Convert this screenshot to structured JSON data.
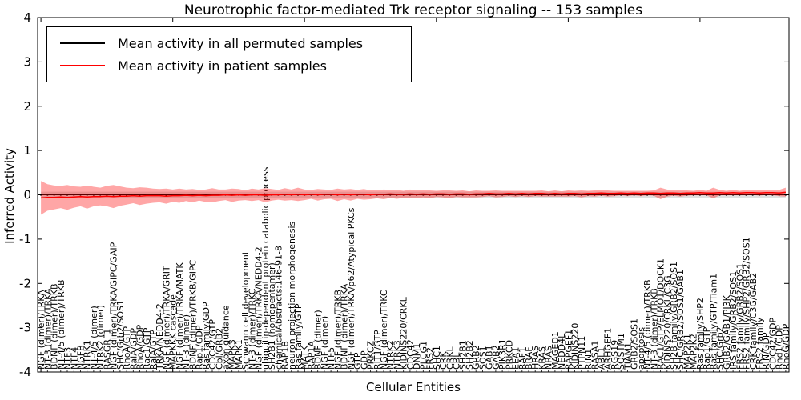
{
  "figure": {
    "title": "Neurotrophic factor-mediated Trk receptor signaling -- 153 samples",
    "xlabel": "Cellular Entities",
    "ylabel": "Inferred Activity"
  },
  "legend": {
    "items": [
      {
        "label": "Mean activity in all permuted samples",
        "color": "#000000"
      },
      {
        "label": "Mean activity in patient samples",
        "color": "#ff0000"
      }
    ]
  },
  "chart_data": {
    "type": "line",
    "title": "Neurotrophic factor-mediated Trk receptor signaling -- 153 samples",
    "xlabel": "Cellular Entities",
    "ylabel": "Inferred Activity",
    "ylim": [
      -4,
      4
    ],
    "yticks": [
      "-4",
      "-3",
      "-2",
      "-1",
      "0",
      "1",
      "2",
      "3",
      "4"
    ],
    "n_samples": 153,
    "grid": false,
    "legend_position": "upper left",
    "categories": [
      "NGF (dimer)/TRKA",
      "NT-3 (dimer)/TRKA",
      "BDNF (dimer)/TRKB",
      "NT-4/5 (dimer)/TRKB",
      "NTF3",
      "NTF4",
      "NGFB",
      "NTRK1",
      "NT-4/5 (dimer)",
      "NTRK2 (dimer)",
      "RASGRF1",
      "NGF (dimer)/TRKA/GIPC/GAIP",
      "SHC/Grb2/SOS1",
      "RhoA/GTP",
      "RalA/GDP",
      "RhoA/GDP",
      "Rac1/GTP",
      "RalA/GTP",
      "TRKA/NEDD4-2",
      "NGF (dimer)/TRKA/GRIT",
      "MAPKKK cascade",
      "NGF (dimer)/TRKA/MATK",
      "NT-3 (dimer)",
      "BDNF (dimer)/TRKB/GIPC",
      "Rap1/GDP",
      "Ras family/GDP",
      "CDC42/GTP",
      "Cbl/GRB2",
      "axon guidance",
      "MAPK3",
      "MAPK1",
      "Schwann cell development",
      "NT-3 (dimer)/TRKC",
      "NGF (dimer)/TRKA/NEDD4-2",
      "ubiquitin-dependent protein catabolic process",
      "SH2B1 (homopentamer)",
      "chemicalAbstracts:146-91-8",
      "RAP1B",
      "neuron projection morphogenesis",
      "Ras family/GTP",
      "MATK",
      "RAP1A",
      "BDNF (dimer)",
      "NGF (dimer)",
      "NTF5",
      "NGF (dimer)/TRKB",
      "BDNF (dimer)/TRKA",
      "NGF (dimer)/TRKA/p62/Atypical PKCs",
      "GTP",
      "GDP",
      "PRKCZ",
      "RIT1/GTP",
      "NGF (dimer)/TRKC",
      "NTRK2",
      "NTRK3",
      "KIDINS220/CRKL",
      "CDC42",
      "DNM1",
      "PLCG1",
      "FRS2",
      "SHC1",
      "CRK",
      "CRKL",
      "CBL",
      "SH2B1",
      "SH2B2",
      "GRB2",
      "SOS1",
      "GAB1",
      "GAB2",
      "PIK3R1",
      "PRKCD",
      "EEA1",
      "RAF1",
      "BRAF",
      "HRAS",
      "KRAS",
      "NRAS",
      "MAGED1",
      "NEDD4L",
      "RAPGEF1",
      "KIDINS220",
      "PTPN11",
      "RIN1",
      "RASA1",
      "ABL1",
      "ARHGEF1",
      "RGS19",
      "SQSTM1",
      "TIAM1",
      "GRB2/SOS1",
      "apoptosis",
      "NT-4/5 (dimer)/TRKB",
      "NT-3 (dimer)/TRKB",
      "RAC1/GTP/ELMO1/DOCK1",
      "KIDINS220/CRKL/C3G",
      "SH2B family/GRB2/SOS1",
      "SHC/GRB2/SOS1/GAB1",
      "MAP2K1",
      "MAP2K2",
      "Ras family/SHP2",
      "Rap1/GTP",
      "Ras family/GTP/Tiam1",
      "SHC/Grb2",
      "GRB2/GAB1/PI3K",
      "IRS family/GRB2/SOS1",
      "FRS2 family/GRB2/SOS1",
      "FRS2 family/SHP2/GRB2/SOS1",
      "CRK family/C3G/GAB2",
      "FRS2 family",
      "RIN/GDP",
      "CDC42/GDP",
      "Rnd1/GDP",
      "RhoG/GDP"
    ],
    "series": [
      {
        "name": "Mean activity in all permuted samples",
        "color": "#000000",
        "band_color": "#999999",
        "mean": 0.0,
        "band_halfwidth": 0.07
      },
      {
        "name": "Mean activity in patient samples",
        "color": "#ff0000",
        "band_color": "#ff0000",
        "mean": [
          -0.07,
          -0.06,
          -0.06,
          -0.05,
          -0.06,
          -0.05,
          -0.04,
          -0.05,
          -0.04,
          -0.04,
          -0.03,
          -0.04,
          -0.03,
          -0.03,
          -0.02,
          -0.03,
          -0.02,
          -0.02,
          -0.02,
          -0.03,
          -0.02,
          -0.02,
          -0.01,
          -0.02,
          -0.01,
          -0.02,
          -0.01,
          -0.01,
          0,
          -0.01,
          0,
          -0.01,
          0,
          0,
          -0.01,
          0,
          0,
          0.01,
          0,
          0.01,
          0,
          0.01,
          0,
          0.01,
          0.01,
          0,
          0.01,
          0,
          0.01,
          0.01,
          0,
          0.01,
          0.01,
          0.02,
          0.01,
          0.01,
          0.02,
          0.01,
          0.02,
          0.01,
          0.02,
          0.02,
          0.01,
          0.02,
          0.02,
          0.01,
          0.02,
          0.02,
          0.03,
          0.02,
          0.02,
          0.03,
          0.02,
          0.03,
          0.02,
          0.03,
          0.03,
          0.02,
          0.03,
          0.02,
          0.03,
          0.03,
          0.02,
          0.03,
          0.03,
          0.04,
          0.03,
          0.03,
          0.04,
          0.03,
          0.04,
          0.03,
          0.04,
          0.04,
          0.03,
          0.04,
          0.04,
          0.03,
          0.04,
          0.04,
          0.05,
          0.04,
          0.04,
          0.05,
          0.04,
          0.05,
          0.04,
          0.05,
          0.05,
          0.04,
          0.05,
          0.05,
          0.04,
          0.06
        ],
        "band_halfwidth": [
          0.38,
          0.3,
          0.27,
          0.25,
          0.28,
          0.24,
          0.22,
          0.26,
          0.22,
          0.2,
          0.23,
          0.26,
          0.22,
          0.19,
          0.17,
          0.2,
          0.18,
          0.16,
          0.15,
          0.17,
          0.14,
          0.16,
          0.13,
          0.15,
          0.12,
          0.14,
          0.16,
          0.13,
          0.12,
          0.15,
          0.13,
          0.11,
          0.14,
          0.12,
          0.16,
          0.13,
          0.11,
          0.14,
          0.12,
          0.15,
          0.12,
          0.1,
          0.13,
          0.11,
          0.1,
          0.14,
          0.11,
          0.13,
          0.1,
          0.12,
          0.1,
          0.09,
          0.11,
          0.09,
          0.1,
          0.08,
          0.1,
          0.09,
          0.08,
          0.09,
          0.07,
          0.08,
          0.09,
          0.07,
          0.08,
          0.07,
          0.08,
          0.07,
          0.06,
          0.08,
          0.07,
          0.06,
          0.07,
          0.06,
          0.07,
          0.06,
          0.07,
          0.06,
          0.07,
          0.06,
          0.07,
          0.06,
          0.08,
          0.06,
          0.07,
          0.06,
          0.07,
          0.06,
          0.05,
          0.06,
          0.05,
          0.06,
          0.05,
          0.06,
          0.13,
          0.08,
          0.06,
          0.07,
          0.06,
          0.05,
          0.06,
          0.05,
          0.12,
          0.06,
          0.05,
          0.06,
          0.05,
          0.06,
          0.05,
          0.06,
          0.05,
          0.06,
          0.07,
          0.1
        ]
      }
    ]
  }
}
